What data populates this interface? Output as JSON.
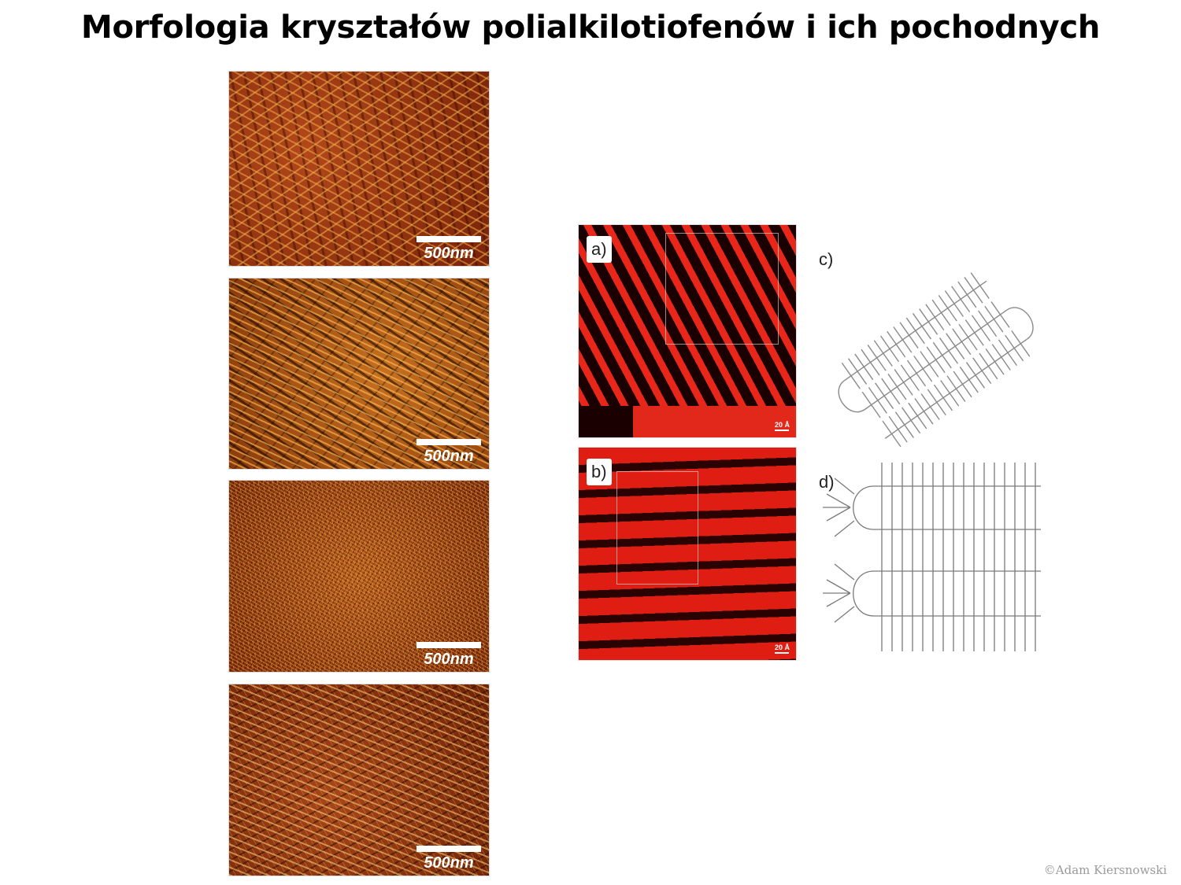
{
  "title": "Morfologia kryształów polialkilotiofenów i ich pochodnych",
  "afm_images": [
    {
      "scale_label": "500nm"
    },
    {
      "scale_label": "500nm"
    },
    {
      "scale_label": "500nm"
    },
    {
      "scale_label": "500nm"
    }
  ],
  "stm_images": [
    {
      "label": "a)",
      "scale_label": "20 Å"
    },
    {
      "label": "b)",
      "scale_label": "20 Å"
    }
  ],
  "diagrams": [
    {
      "label": "c)"
    },
    {
      "label": "d)"
    }
  ],
  "footer": {
    "copyright": "©Adam Kiersnowski"
  },
  "colors": {
    "afm_brown": "#8c2a0a",
    "stm_red": "#e01d12",
    "diagram_gray": "#8a8a8a"
  }
}
